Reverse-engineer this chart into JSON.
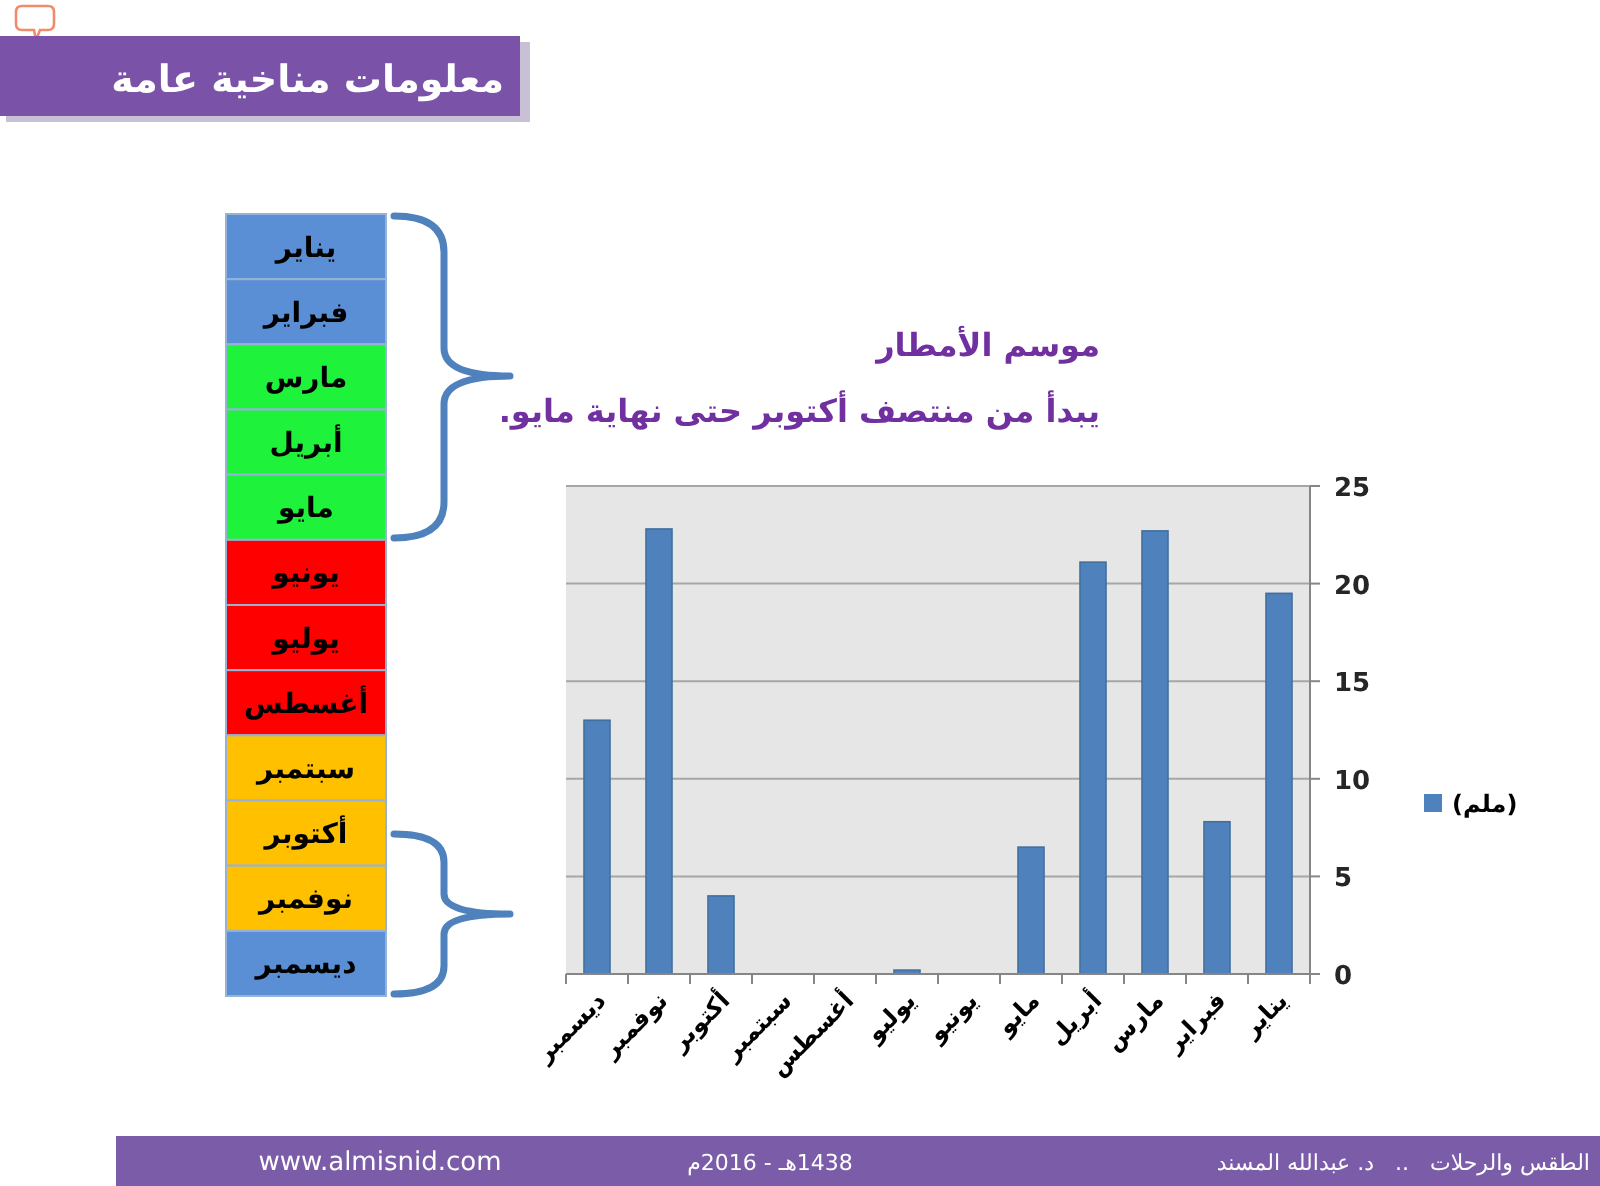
{
  "chart_data": [
    {
      "type": "bar",
      "title": "موسم الأمطار",
      "subtitle": "يبدأ من منتصف أكتوبر حتى نهاية مايو.",
      "categories": [
        "ديسمبر",
        "نوفمبر",
        "أكتوبر",
        "سبتمبر",
        "أغسطس",
        "يوليو",
        "يونيو",
        "مايو",
        "أبريل",
        "مارس",
        "فبراير",
        "يناير"
      ],
      "series": [
        {
          "name": "(ملم)",
          "color": "#4f81bd",
          "values": [
            13,
            22.8,
            4,
            0,
            0,
            0.2,
            0,
            6.5,
            21.1,
            22.7,
            7.8,
            19.5
          ]
        }
      ],
      "ylim": [
        0,
        25
      ],
      "yticks": [
        0,
        5,
        10,
        15,
        20,
        25
      ],
      "grid": "y",
      "legend": "right"
    },
    {
      "type": "other",
      "title": "معلومات مناخية عامة",
      "categories": [
        "يناير",
        "فبراير",
        "مارس",
        "أبريل",
        "مايو",
        "يونيو",
        "يوليو",
        "أغسطس",
        "سبتمبر",
        "أكتوبر",
        "نوفمبر",
        "ديسمبر"
      ],
      "colors": [
        "#5b8fd5",
        "#5b8fd5",
        "#1ff23a",
        "#1ff23a",
        "#1ff23a",
        "#ff0000",
        "#ff0000",
        "#ff0000",
        "#ffc000",
        "#ffc000",
        "#ffc000",
        "#5b8fd5"
      ],
      "annotations": [
        "www.almisnid.com",
        "1438هـ - 2016م",
        "الطقس والرحلات   ..   د. عبدالله المسند"
      ]
    }
  ]
}
